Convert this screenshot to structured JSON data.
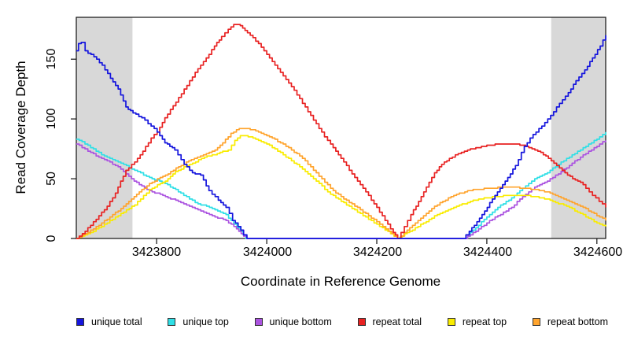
{
  "x_axis": {
    "title": "Coordinate in Reference Genome"
  },
  "y_axis": {
    "title": "Read Coverage Depth"
  },
  "legend": {
    "items": [
      {
        "label": "unique total",
        "color": "#1515dd"
      },
      {
        "label": "unique top",
        "color": "#2fdfe6"
      },
      {
        "label": "unique bottom",
        "color": "#ab53e0"
      },
      {
        "label": "repeat total",
        "color": "#e82222"
      },
      {
        "label": "repeat top",
        "color": "#f9ec00"
      },
      {
        "label": "repeat bottom",
        "color": "#ffa42e"
      }
    ]
  },
  "chart_data": {
    "type": "line",
    "title": "",
    "xlabel": "Coordinate in Reference Genome",
    "ylabel": "Read Coverage Depth",
    "xlim": [
      3423654,
      3424616
    ],
    "ylim": [
      0,
      185
    ],
    "x_ticks": [
      3423800,
      3424000,
      3424200,
      3424400,
      3424600
    ],
    "y_ticks": [
      0,
      50,
      100,
      150
    ],
    "grid": false,
    "legend_position": "bottom",
    "shade_color": "#d8d8d8",
    "shaded_regions": [
      {
        "from": 3423654,
        "to": 3423756
      },
      {
        "from": 3424517,
        "to": 3424616
      }
    ],
    "series": [
      {
        "name": "unique total",
        "color": "#1515dd",
        "points": [
          [
            3423654,
            157
          ],
          [
            3423658,
            163
          ],
          [
            3423663,
            164
          ],
          [
            3423670,
            157
          ],
          [
            3423686,
            152
          ],
          [
            3423701,
            145
          ],
          [
            3423716,
            134
          ],
          [
            3423730,
            125
          ],
          [
            3423744,
            110
          ],
          [
            3423757,
            105
          ],
          [
            3423773,
            101
          ],
          [
            3423790,
            94
          ],
          [
            3423801,
            89
          ],
          [
            3423815,
            80
          ],
          [
            3423833,
            74
          ],
          [
            3423850,
            62
          ],
          [
            3423865,
            55
          ],
          [
            3423880,
            53
          ],
          [
            3423895,
            40
          ],
          [
            3423912,
            32
          ],
          [
            3423926,
            26
          ],
          [
            3423938,
            15
          ],
          [
            3423948,
            10
          ],
          [
            3423958,
            3
          ],
          [
            3423964,
            0
          ],
          [
            3424356,
            0
          ],
          [
            3424368,
            6
          ],
          [
            3424382,
            14
          ],
          [
            3424396,
            23
          ],
          [
            3424410,
            33
          ],
          [
            3424424,
            42
          ],
          [
            3424438,
            51
          ],
          [
            3424452,
            61
          ],
          [
            3424468,
            77
          ],
          [
            3424484,
            87
          ],
          [
            3424500,
            94
          ],
          [
            3424516,
            103
          ],
          [
            3424532,
            113
          ],
          [
            3424548,
            122
          ],
          [
            3424562,
            132
          ],
          [
            3424578,
            141
          ],
          [
            3424592,
            151
          ],
          [
            3424606,
            161
          ],
          [
            3424616,
            170
          ]
        ]
      },
      {
        "name": "unique top",
        "color": "#2fdfe6",
        "points": [
          [
            3423654,
            83
          ],
          [
            3423675,
            78
          ],
          [
            3423700,
            70
          ],
          [
            3423730,
            64
          ],
          [
            3423760,
            57
          ],
          [
            3423787,
            51
          ],
          [
            3423810,
            47
          ],
          [
            3423830,
            42
          ],
          [
            3423844,
            38
          ],
          [
            3423870,
            30
          ],
          [
            3423901,
            25
          ],
          [
            3423926,
            20
          ],
          [
            3423940,
            12
          ],
          [
            3423952,
            6
          ],
          [
            3423962,
            0
          ],
          [
            3424360,
            0
          ],
          [
            3424380,
            9
          ],
          [
            3424400,
            18
          ],
          [
            3424420,
            26
          ],
          [
            3424445,
            34
          ],
          [
            3424465,
            42
          ],
          [
            3424487,
            50
          ],
          [
            3424510,
            55
          ],
          [
            3424530,
            62
          ],
          [
            3424550,
            68
          ],
          [
            3424570,
            74
          ],
          [
            3424590,
            80
          ],
          [
            3424605,
            85
          ],
          [
            3424616,
            89
          ]
        ]
      },
      {
        "name": "unique bottom",
        "color": "#ab53e0",
        "points": [
          [
            3423654,
            79
          ],
          [
            3423675,
            73
          ],
          [
            3423700,
            67
          ],
          [
            3423730,
            60
          ],
          [
            3423759,
            48
          ],
          [
            3423787,
            40
          ],
          [
            3423816,
            35
          ],
          [
            3423844,
            30
          ],
          [
            3423870,
            25
          ],
          [
            3423901,
            19
          ],
          [
            3423926,
            15
          ],
          [
            3423945,
            8
          ],
          [
            3423958,
            2
          ],
          [
            3423964,
            0
          ],
          [
            3424360,
            0
          ],
          [
            3424380,
            6
          ],
          [
            3424400,
            13
          ],
          [
            3424420,
            19
          ],
          [
            3424445,
            26
          ],
          [
            3424465,
            35
          ],
          [
            3424487,
            43
          ],
          [
            3424510,
            48
          ],
          [
            3424530,
            54
          ],
          [
            3424550,
            61
          ],
          [
            3424570,
            68
          ],
          [
            3424590,
            74
          ],
          [
            3424605,
            79
          ],
          [
            3424616,
            82
          ]
        ]
      },
      {
        "name": "repeat total",
        "color": "#e82222",
        "points": [
          [
            3423654,
            0
          ],
          [
            3423665,
            4
          ],
          [
            3423680,
            11
          ],
          [
            3423695,
            19
          ],
          [
            3423710,
            27
          ],
          [
            3423725,
            38
          ],
          [
            3423744,
            57
          ],
          [
            3423760,
            64
          ],
          [
            3423775,
            73
          ],
          [
            3423790,
            84
          ],
          [
            3423801,
            89
          ],
          [
            3423815,
            101
          ],
          [
            3423830,
            111
          ],
          [
            3423845,
            121
          ],
          [
            3423860,
            132
          ],
          [
            3423875,
            142
          ],
          [
            3423890,
            151
          ],
          [
            3423905,
            161
          ],
          [
            3423918,
            169
          ],
          [
            3423930,
            175
          ],
          [
            3423940,
            179
          ],
          [
            3423952,
            178
          ],
          [
            3423965,
            172
          ],
          [
            3423985,
            163
          ],
          [
            3424005,
            151
          ],
          [
            3424025,
            139
          ],
          [
            3424045,
            127
          ],
          [
            3424065,
            113
          ],
          [
            3424085,
            99
          ],
          [
            3424105,
            85
          ],
          [
            3424116,
            79
          ],
          [
            3424135,
            67
          ],
          [
            3424155,
            54
          ],
          [
            3424175,
            42
          ],
          [
            3424195,
            29
          ],
          [
            3424215,
            15
          ],
          [
            3424230,
            5
          ],
          [
            3424238,
            0
          ],
          [
            3424250,
            10
          ],
          [
            3424262,
            20
          ],
          [
            3424276,
            31
          ],
          [
            3424290,
            43
          ],
          [
            3424305,
            55
          ],
          [
            3424318,
            62
          ],
          [
            3424332,
            67
          ],
          [
            3424348,
            71
          ],
          [
            3424365,
            74
          ],
          [
            3424385,
            76
          ],
          [
            3424405,
            78
          ],
          [
            3424425,
            79
          ],
          [
            3424450,
            79
          ],
          [
            3424465,
            78
          ],
          [
            3424482,
            75
          ],
          [
            3424498,
            72
          ],
          [
            3424512,
            67
          ],
          [
            3424527,
            61
          ],
          [
            3424542,
            55
          ],
          [
            3424556,
            50
          ],
          [
            3424570,
            47
          ],
          [
            3424580,
            42
          ],
          [
            3424592,
            36
          ],
          [
            3424604,
            31
          ],
          [
            3424616,
            26
          ]
        ]
      },
      {
        "name": "repeat top",
        "color": "#f9ec00",
        "points": [
          [
            3423654,
            0
          ],
          [
            3423680,
            5
          ],
          [
            3423700,
            10
          ],
          [
            3423720,
            16
          ],
          [
            3423740,
            22
          ],
          [
            3423760,
            28
          ],
          [
            3423787,
            41
          ],
          [
            3423816,
            48
          ],
          [
            3423834,
            56
          ],
          [
            3423860,
            62
          ],
          [
            3423887,
            68
          ],
          [
            3423910,
            71
          ],
          [
            3423930,
            74
          ],
          [
            3423942,
            82
          ],
          [
            3423952,
            86
          ],
          [
            3423962,
            86
          ],
          [
            3423975,
            84
          ],
          [
            3424000,
            79
          ],
          [
            3424030,
            70
          ],
          [
            3424060,
            60
          ],
          [
            3424090,
            48
          ],
          [
            3424116,
            37
          ],
          [
            3424145,
            28
          ],
          [
            3424175,
            19
          ],
          [
            3424205,
            10
          ],
          [
            3424225,
            4
          ],
          [
            3424237,
            0
          ],
          [
            3424260,
            6
          ],
          [
            3424285,
            13
          ],
          [
            3424310,
            20
          ],
          [
            3424340,
            26
          ],
          [
            3424370,
            31
          ],
          [
            3424400,
            34
          ],
          [
            3424440,
            36
          ],
          [
            3424470,
            36
          ],
          [
            3424500,
            34
          ],
          [
            3424520,
            31
          ],
          [
            3424545,
            27
          ],
          [
            3424565,
            22
          ],
          [
            3424585,
            17
          ],
          [
            3424600,
            13
          ],
          [
            3424616,
            10
          ]
        ]
      },
      {
        "name": "repeat bottom",
        "color": "#ffa42e",
        "points": [
          [
            3423654,
            0
          ],
          [
            3423675,
            5
          ],
          [
            3423695,
            11
          ],
          [
            3423715,
            18
          ],
          [
            3423735,
            25
          ],
          [
            3423759,
            35
          ],
          [
            3423787,
            46
          ],
          [
            3423816,
            53
          ],
          [
            3423840,
            60
          ],
          [
            3423863,
            66
          ],
          [
            3423885,
            70
          ],
          [
            3423906,
            74
          ],
          [
            3423920,
            80
          ],
          [
            3423935,
            88
          ],
          [
            3423950,
            92
          ],
          [
            3423965,
            92
          ],
          [
            3423985,
            89
          ],
          [
            3424010,
            84
          ],
          [
            3424040,
            76
          ],
          [
            3424070,
            65
          ],
          [
            3424095,
            52
          ],
          [
            3424116,
            42
          ],
          [
            3424140,
            33
          ],
          [
            3424170,
            24
          ],
          [
            3424200,
            14
          ],
          [
            3424222,
            6
          ],
          [
            3424238,
            0
          ],
          [
            3424255,
            7
          ],
          [
            3424275,
            15
          ],
          [
            3424295,
            23
          ],
          [
            3424315,
            30
          ],
          [
            3424340,
            36
          ],
          [
            3424365,
            40
          ],
          [
            3424400,
            42
          ],
          [
            3424440,
            43
          ],
          [
            3424470,
            42
          ],
          [
            3424500,
            40
          ],
          [
            3424520,
            37
          ],
          [
            3424545,
            32
          ],
          [
            3424570,
            27
          ],
          [
            3424590,
            22
          ],
          [
            3424605,
            18
          ],
          [
            3424616,
            15
          ]
        ]
      }
    ]
  }
}
